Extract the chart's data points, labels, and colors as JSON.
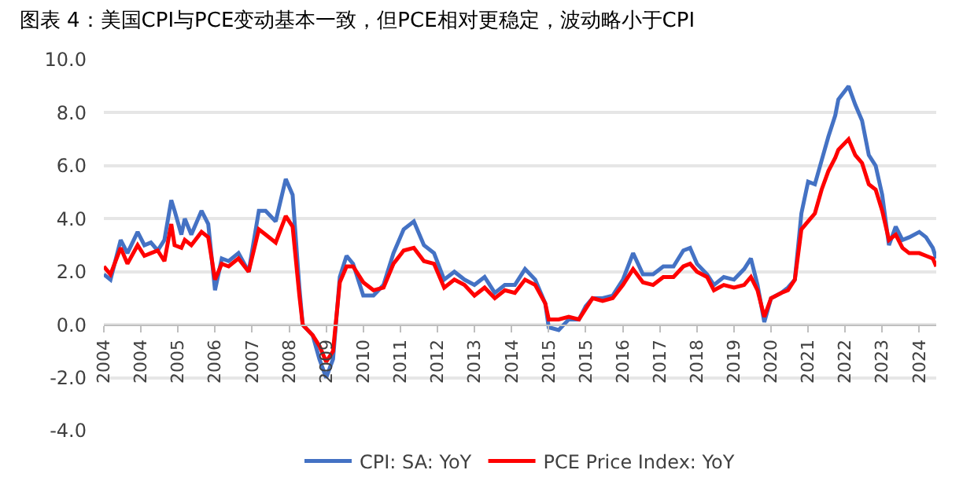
{
  "chart_data": {
    "type": "line",
    "title": "图表 4：美国CPI与PCE变动基本一致，但PCE相对更稳定，波动略小于CPI",
    "ylim": [
      -4,
      10
    ],
    "yticks": [
      {
        "value": -4,
        "label": "-4.0"
      },
      {
        "value": -2,
        "label": "-2.0"
      },
      {
        "value": 0,
        "label": "0.0"
      },
      {
        "value": 2,
        "label": "2.0"
      },
      {
        "value": 4,
        "label": "4.0"
      },
      {
        "value": 6,
        "label": "6.0"
      },
      {
        "value": 8,
        "label": "8.0"
      },
      {
        "value": 10,
        "label": "10.0"
      }
    ],
    "xlim": [
      "2004-01",
      "2024-08"
    ],
    "xticks": [
      {
        "value": "2004-01",
        "label": "2004"
      },
      {
        "value": "2004-12",
        "label": "2004"
      },
      {
        "value": "2005-11",
        "label": "2005"
      },
      {
        "value": "2006-10",
        "label": "2006"
      },
      {
        "value": "2007-09",
        "label": "2007"
      },
      {
        "value": "2008-08",
        "label": "2008"
      },
      {
        "value": "2009-07",
        "label": "2009"
      },
      {
        "value": "2010-06",
        "label": "2010"
      },
      {
        "value": "2011-05",
        "label": "2011"
      },
      {
        "value": "2012-04",
        "label": "2012"
      },
      {
        "value": "2013-03",
        "label": "2013"
      },
      {
        "value": "2014-02",
        "label": "2014"
      },
      {
        "value": "2015-01",
        "label": "2015"
      },
      {
        "value": "2015-12",
        "label": "2015"
      },
      {
        "value": "2016-11",
        "label": "2016"
      },
      {
        "value": "2017-10",
        "label": "2017"
      },
      {
        "value": "2018-09",
        "label": "2018"
      },
      {
        "value": "2019-08",
        "label": "2019"
      },
      {
        "value": "2020-07",
        "label": "2020"
      },
      {
        "value": "2021-06",
        "label": "2021"
      },
      {
        "value": "2022-05",
        "label": "2022"
      },
      {
        "value": "2023-04",
        "label": "2023"
      },
      {
        "value": "2024-03",
        "label": "2024"
      }
    ],
    "x": [
      "2004-01",
      "2004-03",
      "2004-06",
      "2004-08",
      "2004-11",
      "2005-01",
      "2005-03",
      "2005-05",
      "2005-07",
      "2005-09",
      "2005-10",
      "2005-12",
      "2006-01",
      "2006-03",
      "2006-06",
      "2006-08",
      "2006-10",
      "2006-12",
      "2007-02",
      "2007-05",
      "2007-08",
      "2007-11",
      "2008-01",
      "2008-04",
      "2008-07",
      "2008-09",
      "2008-11",
      "2008-12",
      "2009-03",
      "2009-05",
      "2009-07",
      "2009-09",
      "2009-11",
      "2010-01",
      "2010-03",
      "2010-06",
      "2010-09",
      "2010-12",
      "2011-03",
      "2011-06",
      "2011-09",
      "2011-12",
      "2012-03",
      "2012-06",
      "2012-09",
      "2012-12",
      "2013-03",
      "2013-06",
      "2013-09",
      "2013-12",
      "2014-03",
      "2014-06",
      "2014-09",
      "2014-12",
      "2015-01",
      "2015-04",
      "2015-07",
      "2015-10",
      "2015-12",
      "2016-02",
      "2016-05",
      "2016-08",
      "2016-11",
      "2017-02",
      "2017-05",
      "2017-08",
      "2017-11",
      "2018-02",
      "2018-05",
      "2018-07",
      "2018-09",
      "2018-12",
      "2019-02",
      "2019-05",
      "2019-08",
      "2019-11",
      "2020-01",
      "2020-03",
      "2020-05",
      "2020-07",
      "2020-10",
      "2020-12",
      "2021-02",
      "2021-04",
      "2021-06",
      "2021-08",
      "2021-10",
      "2021-12",
      "2022-02",
      "2022-03",
      "2022-06",
      "2022-08",
      "2022-10",
      "2022-12",
      "2023-02",
      "2023-04",
      "2023-06",
      "2023-08",
      "2023-10",
      "2023-12",
      "2024-03",
      "2024-05",
      "2024-07",
      "2024-08"
    ],
    "grid": "y",
    "legend": "bottom",
    "line_style": "solid",
    "marker": "none",
    "series": [
      {
        "name": "CPI: SA: YoY",
        "color": "#4472c4",
        "values": [
          1.9,
          1.7,
          3.2,
          2.7,
          3.5,
          3.0,
          3.1,
          2.8,
          3.2,
          4.7,
          4.3,
          3.4,
          4.0,
          3.4,
          4.3,
          3.8,
          1.3,
          2.5,
          2.4,
          2.7,
          2.0,
          4.3,
          4.3,
          3.9,
          5.5,
          4.9,
          1.4,
          0.0,
          -0.4,
          -1.3,
          -2.0,
          -1.3,
          1.8,
          2.6,
          2.3,
          1.1,
          1.1,
          1.5,
          2.7,
          3.6,
          3.9,
          3.0,
          2.7,
          1.7,
          2.0,
          1.7,
          1.5,
          1.8,
          1.2,
          1.5,
          1.5,
          2.1,
          1.7,
          0.8,
          -0.1,
          -0.2,
          0.2,
          0.2,
          0.7,
          1.0,
          1.0,
          1.1,
          1.7,
          2.7,
          1.9,
          1.9,
          2.2,
          2.2,
          2.8,
          2.9,
          2.3,
          1.9,
          1.5,
          1.8,
          1.7,
          2.1,
          2.5,
          1.5,
          0.1,
          1.0,
          1.2,
          1.4,
          1.7,
          4.2,
          5.4,
          5.3,
          6.2,
          7.1,
          7.9,
          8.5,
          9.0,
          8.3,
          7.7,
          6.4,
          6.0,
          4.9,
          3.0,
          3.7,
          3.2,
          3.3,
          3.5,
          3.3,
          2.9,
          2.5
        ]
      },
      {
        "name": "PCE Price Index: YoY",
        "color": "#ff0000",
        "values": [
          2.2,
          1.9,
          2.9,
          2.3,
          3.0,
          2.6,
          2.7,
          2.8,
          2.4,
          3.8,
          3.0,
          2.9,
          3.2,
          3.0,
          3.5,
          3.3,
          1.7,
          2.3,
          2.2,
          2.5,
          2.0,
          3.6,
          3.4,
          3.1,
          4.1,
          3.7,
          1.1,
          0.0,
          -0.4,
          -0.8,
          -1.4,
          -1.0,
          1.6,
          2.2,
          2.2,
          1.6,
          1.3,
          1.4,
          2.3,
          2.8,
          2.9,
          2.4,
          2.3,
          1.4,
          1.7,
          1.5,
          1.1,
          1.4,
          1.0,
          1.3,
          1.2,
          1.7,
          1.5,
          0.8,
          0.2,
          0.2,
          0.3,
          0.2,
          0.6,
          1.0,
          0.9,
          1.0,
          1.5,
          2.1,
          1.6,
          1.5,
          1.8,
          1.8,
          2.2,
          2.3,
          2.0,
          1.8,
          1.3,
          1.5,
          1.4,
          1.5,
          1.8,
          1.3,
          0.3,
          1.0,
          1.2,
          1.3,
          1.7,
          3.6,
          3.9,
          4.2,
          5.1,
          5.8,
          6.3,
          6.6,
          7.0,
          6.4,
          6.1,
          5.3,
          5.1,
          4.3,
          3.2,
          3.4,
          2.9,
          2.7,
          2.7,
          2.6,
          2.5,
          2.2
        ]
      }
    ]
  }
}
